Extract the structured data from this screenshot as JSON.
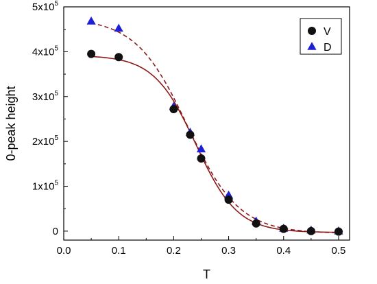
{
  "chart_data": {
    "type": "scatter",
    "xlabel": "T",
    "ylabel": "0-peak height",
    "xlim": [
      0.0,
      0.52
    ],
    "ylim": [
      -20000,
      500000
    ],
    "x_ticks": [
      0.0,
      0.1,
      0.2,
      0.3,
      0.4,
      0.5
    ],
    "x_tick_labels": [
      "0.0",
      "0.1",
      "0.2",
      "0.3",
      "0.4",
      "0.5"
    ],
    "y_ticks": [
      {
        "value": 0,
        "mantissa": "0",
        "exponent": ""
      },
      {
        "value": 100000,
        "mantissa": "1x10",
        "exponent": "5"
      },
      {
        "value": 200000,
        "mantissa": "2x10",
        "exponent": "5"
      },
      {
        "value": 300000,
        "mantissa": "3x10",
        "exponent": "5"
      },
      {
        "value": 400000,
        "mantissa": "4x10",
        "exponent": "5"
      },
      {
        "value": 500000,
        "mantissa": "5x10",
        "exponent": "5"
      }
    ],
    "legend_position": "top-right",
    "series": [
      {
        "name": "V",
        "marker": "circle",
        "marker_color": "#111111",
        "fit_color": "#8b1a1a",
        "fit_style": "solid",
        "x": [
          0.05,
          0.1,
          0.2,
          0.23,
          0.25,
          0.3,
          0.35,
          0.4,
          0.45,
          0.5
        ],
        "y": [
          395000,
          388000,
          272000,
          215000,
          162000,
          70000,
          17000,
          5000,
          0,
          -1000
        ]
      },
      {
        "name": "D",
        "marker": "triangle",
        "marker_color": "#1f1fd6",
        "fit_color": "#8b1a1a",
        "fit_style": "dashed",
        "x": [
          0.05,
          0.1,
          0.2,
          0.23,
          0.25,
          0.3,
          0.35,
          0.4,
          0.45,
          0.5
        ],
        "y": [
          468000,
          452000,
          278000,
          220000,
          183000,
          80000,
          22000,
          6000,
          2000,
          0
        ]
      }
    ],
    "fits": [
      {
        "series": "V",
        "a": 395000,
        "x0": 0.24,
        "dx": 0.038,
        "c": -3000
      },
      {
        "series": "D",
        "a": 480000,
        "x0": 0.225,
        "dx": 0.047,
        "c": -5000
      }
    ]
  }
}
